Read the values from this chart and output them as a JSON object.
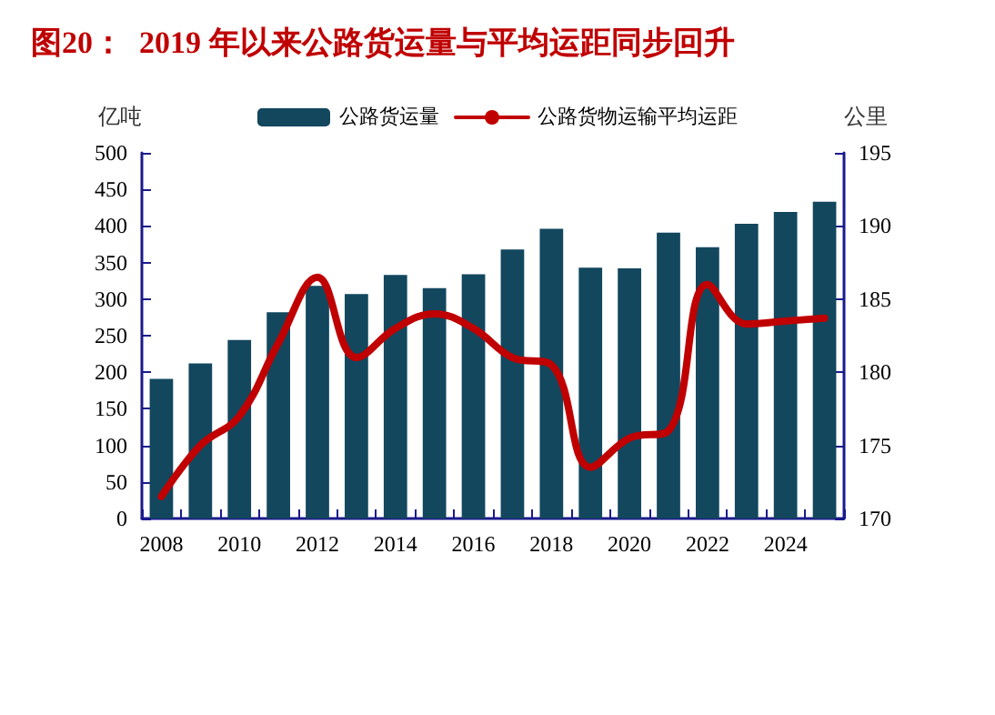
{
  "chart_data": {
    "type": "bar",
    "title": "图20：  2019 年以来公路货运量与平均运距同步回升",
    "ylabel": "亿吨",
    "y2label": "公里",
    "categories": [
      "2008",
      null,
      "2010",
      null,
      "2012",
      null,
      "2014",
      null,
      "2016",
      null,
      "2018",
      null,
      "2020",
      null,
      "2022",
      null,
      "2024",
      null
    ],
    "series": [
      {
        "name": "公路货运量",
        "color": "#12475e",
        "values": [
          191,
          212,
          244,
          282,
          318,
          307,
          333,
          315,
          334,
          368,
          396,
          343,
          342,
          391,
          371,
          403,
          419,
          433
        ]
      },
      {
        "name": "公路货物运输平均运距",
        "type": "line",
        "axis": "y2",
        "color": "#c00000",
        "values": [
          171.5,
          175,
          177,
          182,
          186.5,
          181,
          183,
          184,
          183,
          181,
          180.5,
          173.5,
          175.5,
          176,
          186,
          183.3,
          183.5,
          183.7
        ]
      }
    ],
    "ylim": [
      0,
      500
    ],
    "yticks": [
      0,
      50,
      100,
      150,
      200,
      250,
      300,
      350,
      400,
      450,
      500
    ],
    "y2lim": [
      170,
      195
    ],
    "y2ticks": [
      170,
      175,
      180,
      185,
      190,
      195
    ],
    "grid": false,
    "legend": "top",
    "marker": "none",
    "line_style": "solid"
  }
}
